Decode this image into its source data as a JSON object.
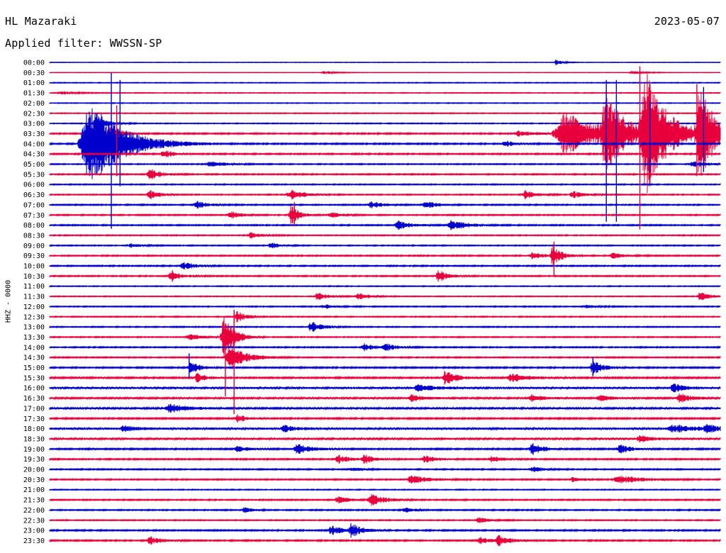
{
  "header": {
    "station": "HL Mazaraki",
    "date": "2023-05-07",
    "filter": "Applied filter: WWSSN-SP"
  },
  "axis": {
    "ylabel": "HHZ - 0000"
  },
  "colors": {
    "blue": "#0000cc",
    "red": "#e8003c"
  },
  "chart_data": {
    "type": "line",
    "title": "HL Mazaraki",
    "subtitle": "2023-05-07",
    "ylabel": "HHZ - 0000",
    "row_labels": [
      "00:00",
      "00:30",
      "01:00",
      "01:30",
      "02:00",
      "02:30",
      "03:00",
      "03:30",
      "04:00",
      "04:30",
      "05:00",
      "05:30",
      "06:00",
      "06:30",
      "07:00",
      "07:30",
      "08:00",
      "08:30",
      "09:00",
      "09:30",
      "10:00",
      "10:30",
      "11:00",
      "11:30",
      "12:00",
      "12:30",
      "13:00",
      "13:30",
      "14:00",
      "14:30",
      "15:00",
      "15:30",
      "16:00",
      "16:30",
      "17:00",
      "17:30",
      "18:00",
      "18:30",
      "19:00",
      "19:30",
      "20:00",
      "20:30",
      "21:00",
      "21:30",
      "22:00",
      "22:30",
      "23:00",
      "23:30"
    ],
    "row_colors": [
      "blue",
      "red"
    ],
    "noise_levels": [
      0.3,
      0.3,
      0.5,
      0.5,
      0.5,
      0.6,
      0.6,
      0.9,
      0.9,
      0.9,
      0.7,
      0.8,
      0.7,
      0.7,
      0.8,
      0.8,
      0.8,
      0.7,
      0.7,
      0.8,
      0.8,
      0.8,
      0.6,
      0.6,
      0.7,
      0.7,
      0.7,
      0.7,
      0.8,
      0.8,
      0.9,
      1.1,
      1.5,
      1.3,
      1.3,
      1.0,
      1.6,
      1.4,
      1.0,
      0.9,
      0.8,
      0.8,
      0.6,
      0.8,
      0.8,
      0.7,
      0.9,
      0.9
    ],
    "events": [
      {
        "row": 0,
        "t": 0.755,
        "amp": 4,
        "dur": 0.012
      },
      {
        "row": 1,
        "t": 0.41,
        "amp": 2,
        "dur": 0.02
      },
      {
        "row": 1,
        "t": 0.87,
        "amp": 2,
        "dur": 0.02
      },
      {
        "row": 3,
        "t": 0.02,
        "amp": 2,
        "dur": 0.03
      },
      {
        "row": 6,
        "t": 0.07,
        "amp": 10,
        "dur": 0.02
      },
      {
        "row": 7,
        "t": 0.09,
        "amp": 12,
        "dur": 0.02
      },
      {
        "row": 7,
        "t": 0.7,
        "amp": 4,
        "dur": 0.03
      },
      {
        "row": 7,
        "t": 0.77,
        "amp": 30,
        "dur": 0.07
      },
      {
        "row": 7,
        "t": 0.83,
        "amp": 55,
        "dur": 0.03
      },
      {
        "row": 7,
        "t": 0.89,
        "amp": 80,
        "dur": 0.04
      },
      {
        "row": 7,
        "t": 0.97,
        "amp": 60,
        "dur": 0.03
      },
      {
        "row": 8,
        "t": 0.06,
        "amp": 60,
        "dur": 0.06
      },
      {
        "row": 8,
        "t": 0.68,
        "amp": 4,
        "dur": 0.02
      },
      {
        "row": 9,
        "t": 0.17,
        "amp": 7,
        "dur": 0.015
      },
      {
        "row": 10,
        "t": 0.24,
        "amp": 4,
        "dur": 0.03
      },
      {
        "row": 10,
        "t": 0.96,
        "amp": 4,
        "dur": 0.03
      },
      {
        "row": 11,
        "t": 0.15,
        "amp": 8,
        "dur": 0.02
      },
      {
        "row": 13,
        "t": 0.15,
        "amp": 6,
        "dur": 0.02
      },
      {
        "row": 13,
        "t": 0.36,
        "amp": 7,
        "dur": 0.025
      },
      {
        "row": 13,
        "t": 0.71,
        "amp": 6,
        "dur": 0.02
      },
      {
        "row": 13,
        "t": 0.78,
        "amp": 5,
        "dur": 0.02
      },
      {
        "row": 14,
        "t": 0.22,
        "amp": 5,
        "dur": 0.02
      },
      {
        "row": 14,
        "t": 0.48,
        "amp": 5,
        "dur": 0.02
      },
      {
        "row": 14,
        "t": 0.56,
        "amp": 6,
        "dur": 0.02
      },
      {
        "row": 15,
        "t": 0.27,
        "amp": 5,
        "dur": 0.02
      },
      {
        "row": 15,
        "t": 0.36,
        "amp": 14,
        "dur": 0.015
      },
      {
        "row": 15,
        "t": 0.42,
        "amp": 4,
        "dur": 0.02
      },
      {
        "row": 16,
        "t": 0.52,
        "amp": 6,
        "dur": 0.025
      },
      {
        "row": 16,
        "t": 0.6,
        "amp": 7,
        "dur": 0.03
      },
      {
        "row": 17,
        "t": 0.3,
        "amp": 4,
        "dur": 0.02
      },
      {
        "row": 18,
        "t": 0.12,
        "amp": 3,
        "dur": 0.02
      },
      {
        "row": 18,
        "t": 0.33,
        "amp": 4,
        "dur": 0.02
      },
      {
        "row": 19,
        "t": 0.72,
        "amp": 5,
        "dur": 0.02
      },
      {
        "row": 19,
        "t": 0.75,
        "amp": 16,
        "dur": 0.015
      },
      {
        "row": 19,
        "t": 0.84,
        "amp": 4,
        "dur": 0.02
      },
      {
        "row": 20,
        "t": 0.2,
        "amp": 5,
        "dur": 0.025
      },
      {
        "row": 21,
        "t": 0.18,
        "amp": 7,
        "dur": 0.02
      },
      {
        "row": 21,
        "t": 0.58,
        "amp": 8,
        "dur": 0.02
      },
      {
        "row": 23,
        "t": 0.4,
        "amp": 5,
        "dur": 0.02
      },
      {
        "row": 23,
        "t": 0.46,
        "amp": 5,
        "dur": 0.02
      },
      {
        "row": 23,
        "t": 0.97,
        "amp": 6,
        "dur": 0.02
      },
      {
        "row": 24,
        "t": 0.41,
        "amp": 3,
        "dur": 0.02
      },
      {
        "row": 24,
        "t": 0.8,
        "amp": 2,
        "dur": 0.02
      },
      {
        "row": 25,
        "t": 0.28,
        "amp": 8,
        "dur": 0.015
      },
      {
        "row": 26,
        "t": 0.39,
        "amp": 8,
        "dur": 0.02
      },
      {
        "row": 27,
        "t": 0.21,
        "amp": 4,
        "dur": 0.025
      },
      {
        "row": 27,
        "t": 0.26,
        "amp": 30,
        "dur": 0.02
      },
      {
        "row": 28,
        "t": 0.47,
        "amp": 5,
        "dur": 0.02
      },
      {
        "row": 28,
        "t": 0.5,
        "amp": 5,
        "dur": 0.02
      },
      {
        "row": 29,
        "t": 0.27,
        "amp": 16,
        "dur": 0.03
      },
      {
        "row": 30,
        "t": 0.21,
        "amp": 10,
        "dur": 0.015
      },
      {
        "row": 30,
        "t": 0.81,
        "amp": 10,
        "dur": 0.02
      },
      {
        "row": 31,
        "t": 0.22,
        "amp": 6,
        "dur": 0.015
      },
      {
        "row": 31,
        "t": 0.59,
        "amp": 10,
        "dur": 0.02
      },
      {
        "row": 31,
        "t": 0.69,
        "amp": 6,
        "dur": 0.03
      },
      {
        "row": 32,
        "t": 0.55,
        "amp": 4,
        "dur": 0.03
      },
      {
        "row": 32,
        "t": 0.93,
        "amp": 6,
        "dur": 0.02
      },
      {
        "row": 33,
        "t": 0.54,
        "amp": 5,
        "dur": 0.02
      },
      {
        "row": 33,
        "t": 0.72,
        "amp": 5,
        "dur": 0.02
      },
      {
        "row": 33,
        "t": 0.82,
        "amp": 4,
        "dur": 0.02
      },
      {
        "row": 33,
        "t": 0.94,
        "amp": 6,
        "dur": 0.02
      },
      {
        "row": 34,
        "t": 0.18,
        "amp": 6,
        "dur": 0.03
      },
      {
        "row": 35,
        "t": 0.28,
        "amp": 5,
        "dur": 0.02
      },
      {
        "row": 36,
        "t": 0.11,
        "amp": 4,
        "dur": 0.02
      },
      {
        "row": 36,
        "t": 0.35,
        "amp": 4,
        "dur": 0.02
      },
      {
        "row": 36,
        "t": 0.93,
        "amp": 5,
        "dur": 0.04
      },
      {
        "row": 36,
        "t": 0.98,
        "amp": 5,
        "dur": 0.02
      },
      {
        "row": 37,
        "t": 0.88,
        "amp": 5,
        "dur": 0.02
      },
      {
        "row": 38,
        "t": 0.28,
        "amp": 4,
        "dur": 0.02
      },
      {
        "row": 38,
        "t": 0.37,
        "amp": 7,
        "dur": 0.025
      },
      {
        "row": 38,
        "t": 0.72,
        "amp": 8,
        "dur": 0.02
      },
      {
        "row": 38,
        "t": 0.85,
        "amp": 6,
        "dur": 0.02
      },
      {
        "row": 39,
        "t": 0.43,
        "amp": 6,
        "dur": 0.02
      },
      {
        "row": 39,
        "t": 0.47,
        "amp": 6,
        "dur": 0.02
      },
      {
        "row": 39,
        "t": 0.56,
        "amp": 5,
        "dur": 0.02
      },
      {
        "row": 39,
        "t": 0.66,
        "amp": 4,
        "dur": 0.02
      },
      {
        "row": 40,
        "t": 0.45,
        "amp": 3,
        "dur": 0.02
      },
      {
        "row": 40,
        "t": 0.72,
        "amp": 4,
        "dur": 0.02
      },
      {
        "row": 41,
        "t": 0.54,
        "amp": 6,
        "dur": 0.03
      },
      {
        "row": 41,
        "t": 0.78,
        "amp": 3,
        "dur": 0.02
      },
      {
        "row": 41,
        "t": 0.85,
        "amp": 6,
        "dur": 0.04
      },
      {
        "row": 43,
        "t": 0.43,
        "amp": 5,
        "dur": 0.02
      },
      {
        "row": 43,
        "t": 0.48,
        "amp": 8,
        "dur": 0.025
      },
      {
        "row": 44,
        "t": 0.29,
        "amp": 4,
        "dur": 0.015
      },
      {
        "row": 44,
        "t": 0.53,
        "amp": 3,
        "dur": 0.02
      },
      {
        "row": 45,
        "t": 0.64,
        "amp": 4,
        "dur": 0.02
      },
      {
        "row": 46,
        "t": 0.42,
        "amp": 7,
        "dur": 0.02
      },
      {
        "row": 46,
        "t": 0.45,
        "amp": 9,
        "dur": 0.02
      },
      {
        "row": 47,
        "t": 0.15,
        "amp": 6,
        "dur": 0.02
      },
      {
        "row": 47,
        "t": 0.64,
        "amp": 5,
        "dur": 0.02
      },
      {
        "row": 47,
        "t": 0.67,
        "amp": 7,
        "dur": 0.02
      }
    ],
    "spikes": [
      {
        "row": 8,
        "t": 0.092,
        "up": 100,
        "down": 120,
        "color": "blue"
      },
      {
        "row": 8,
        "t": 0.105,
        "up": 90,
        "down": 60,
        "color": "blue"
      },
      {
        "row": 7,
        "t": 0.1,
        "up": 40,
        "down": 60,
        "color": "red"
      },
      {
        "row": 8,
        "t": 0.83,
        "up": 90,
        "down": 110,
        "color": "blue"
      },
      {
        "row": 8,
        "t": 0.845,
        "up": 90,
        "down": 110,
        "color": "blue"
      },
      {
        "row": 7,
        "t": 0.88,
        "up": 95,
        "down": 135,
        "color": "red"
      },
      {
        "row": 8,
        "t": 0.895,
        "up": 60,
        "down": 40,
        "color": "blue"
      },
      {
        "row": 7,
        "t": 0.965,
        "up": 70,
        "down": 60,
        "color": "red"
      },
      {
        "row": 8,
        "t": 0.975,
        "up": 80,
        "down": 40,
        "color": "blue"
      },
      {
        "row": 15,
        "t": 0.365,
        "up": 18,
        "down": 16,
        "color": "red"
      },
      {
        "row": 19,
        "t": 0.752,
        "up": 20,
        "down": 28,
        "color": "red"
      },
      {
        "row": 21,
        "t": 0.183,
        "up": 8,
        "down": 8,
        "color": "red"
      },
      {
        "row": 25,
        "t": 0.275,
        "up": 10,
        "down": 8,
        "color": "red"
      },
      {
        "row": 29,
        "t": 0.262,
        "up": 48,
        "down": 55,
        "color": "red"
      },
      {
        "row": 29,
        "t": 0.275,
        "up": 65,
        "down": 80,
        "color": "red"
      },
      {
        "row": 30,
        "t": 0.208,
        "up": 20,
        "down": 15,
        "color": "blue"
      },
      {
        "row": 30,
        "t": 0.81,
        "up": 15,
        "down": 12,
        "color": "blue"
      }
    ]
  }
}
